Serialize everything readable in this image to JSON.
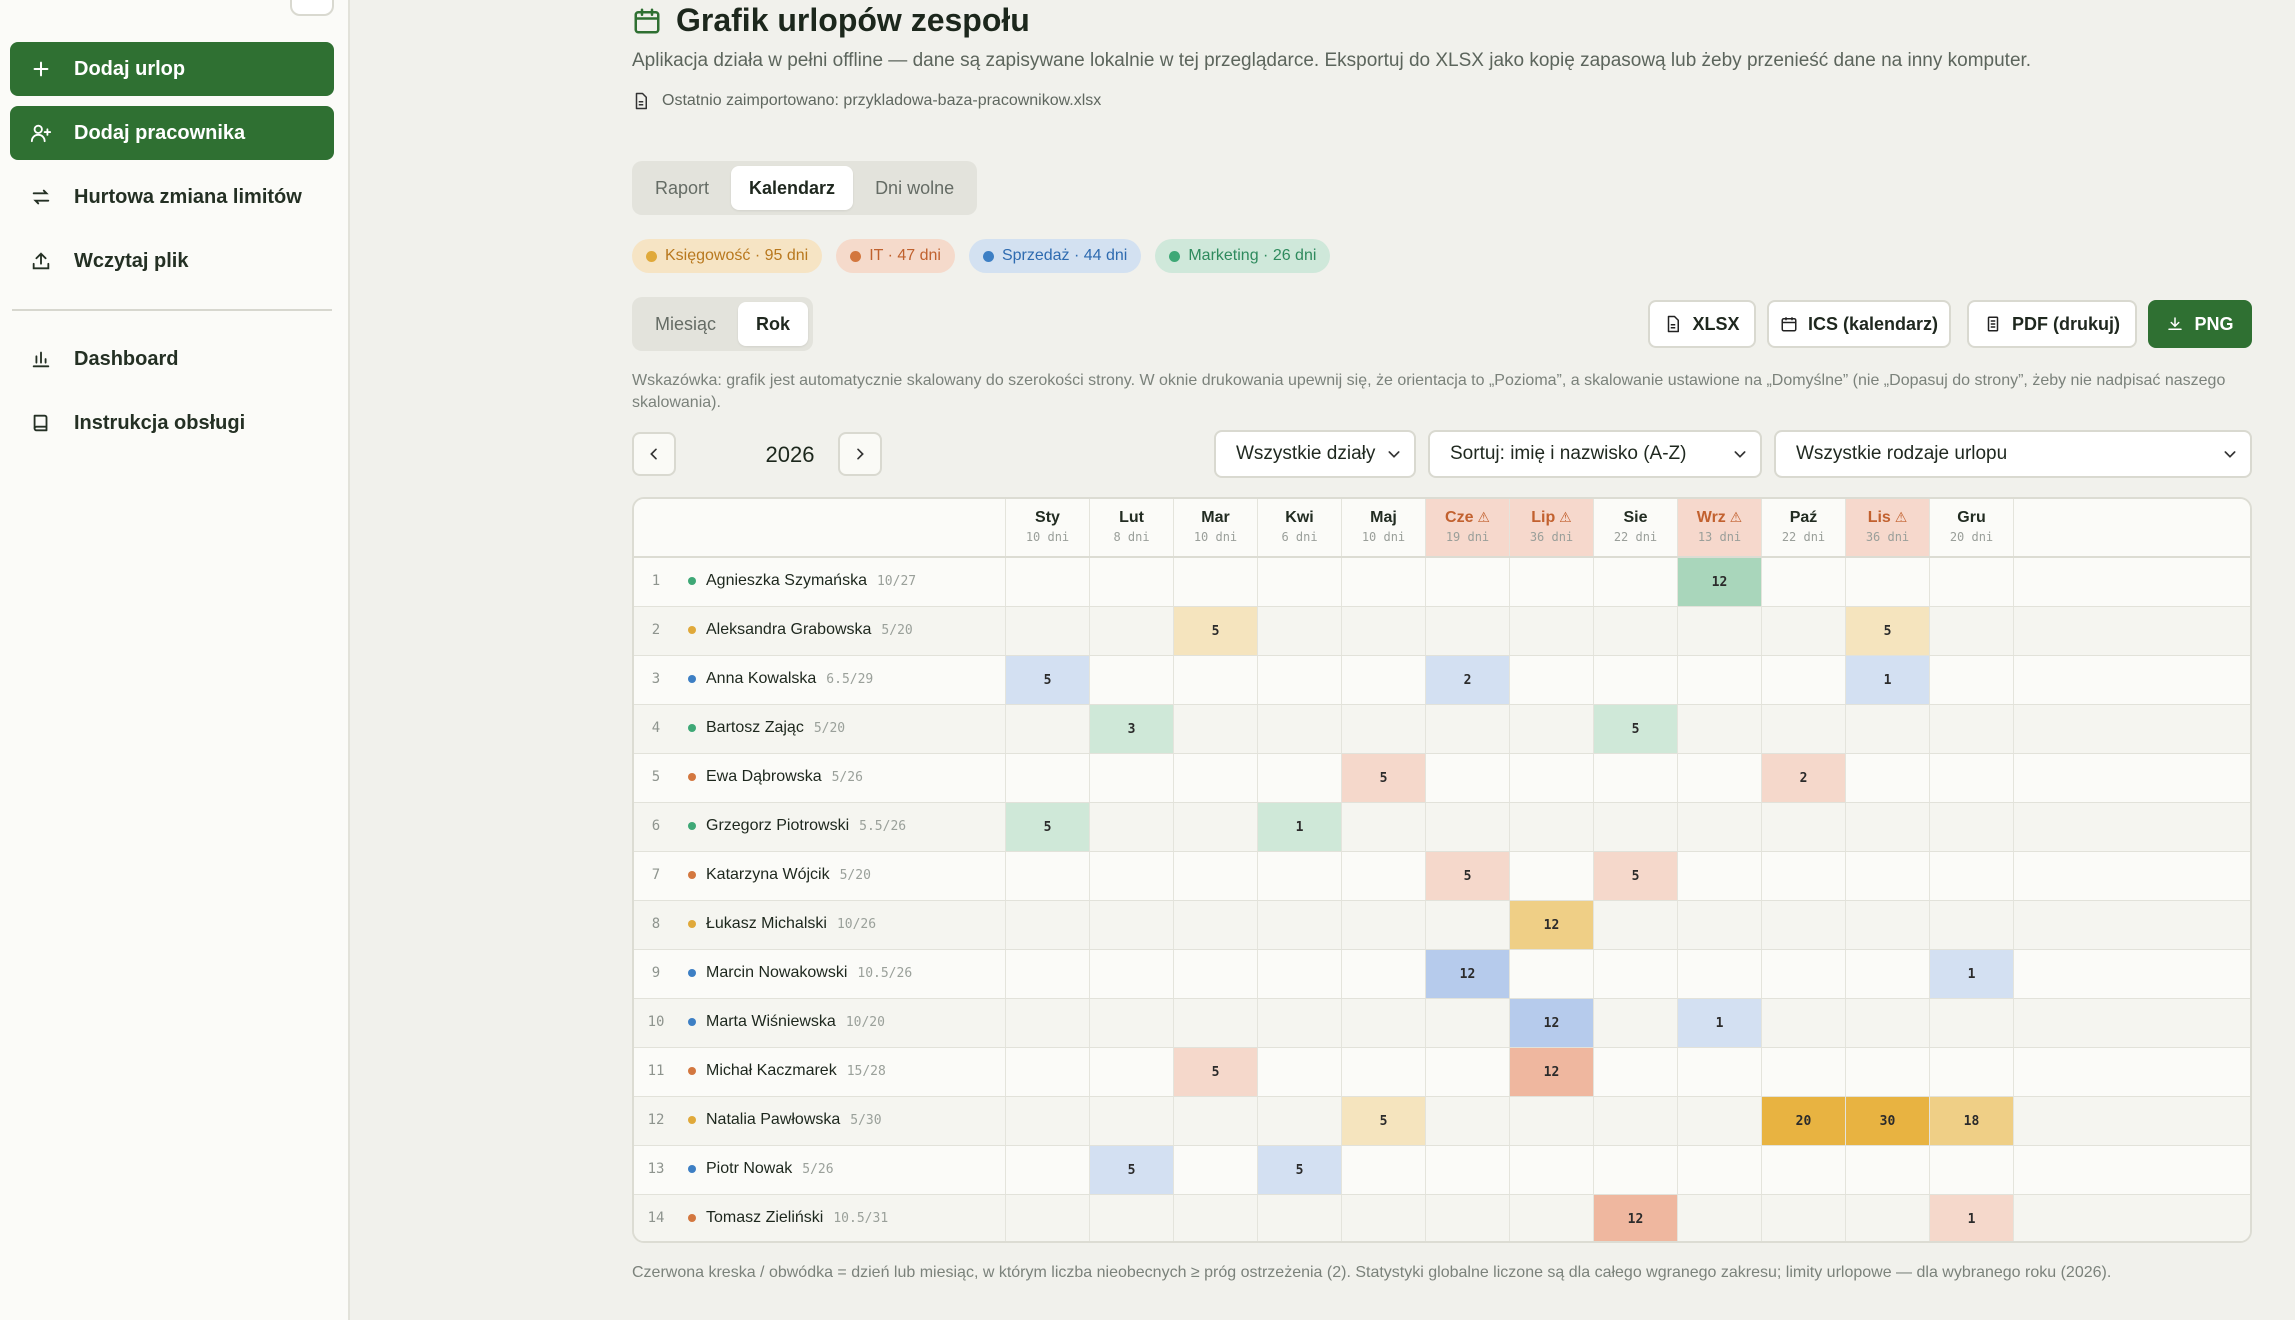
{
  "sidebar": {
    "items": [
      {
        "label": "Dodaj urlop",
        "icon": "plus-icon",
        "primary": true
      },
      {
        "label": "Dodaj pracownika",
        "icon": "add-user-icon",
        "primary": true
      },
      {
        "label": "Hurtowa zmiana limitów",
        "icon": "swap-icon",
        "primary": false
      },
      {
        "label": "Wczytaj plik",
        "icon": "upload-icon",
        "primary": false
      },
      {
        "label": "Dashboard",
        "icon": "bar-chart-icon",
        "primary": false
      },
      {
        "label": "Instrukcja obsługi",
        "icon": "book-icon",
        "primary": false
      }
    ]
  },
  "header": {
    "title": "Grafik urlopów zespołu",
    "subtitle": "Aplikacja działa w pełni offline — dane są zapisywane lokalnie w tej przeglądarce. Eksportuj do XLSX jako kopię zapasową lub żeby przenieść dane na inny komputer.",
    "imported": "Ostatnio zaimportowano: przykladowa-baza-pracownikow.xlsx"
  },
  "tabs": [
    "Raport",
    "Kalendarz",
    "Dni wolne"
  ],
  "active_tab": "Kalendarz",
  "departments": [
    {
      "label": "Księgowość · 95 dni",
      "color": "#e0a93a",
      "bg": "#f6e4c4",
      "text": "#b8781e"
    },
    {
      "label": "IT · 47 dni",
      "color": "#d3773f",
      "bg": "#f5dacb",
      "text": "#c0612e"
    },
    {
      "label": "Sprzedaż · 44 dni",
      "color": "#3d7fc4",
      "bg": "#d3e1f1",
      "text": "#2e6bb0"
    },
    {
      "label": "Marketing · 26 dni",
      "color": "#3ea876",
      "bg": "#cfe8da",
      "text": "#2e8a5d"
    }
  ],
  "view_mode": {
    "options": [
      "Miesiąc",
      "Rok"
    ],
    "active": "Rok"
  },
  "export_buttons": {
    "xlsx": "XLSX",
    "ics": "ICS (kalendarz)",
    "pdf": "PDF (drukuj)",
    "png": "PNG"
  },
  "hint": "Wskazówka: grafik jest automatycznie skalowany do szerokości strony. W oknie drukowania upewnij się, że orientacja to „Pozioma”, a skalowanie ustawione na „Domyślne” (nie „Dopasuj do strony”, żeby nie nadpisać naszego skalowania).",
  "year": "2026",
  "filters": {
    "department": "Wszystkie działy",
    "sort": "Sortuj: imię i nazwisko (A-Z)",
    "leave_type": "Wszystkie rodzaje urlopu"
  },
  "months": [
    {
      "name": "Sty",
      "days": "10 dni",
      "warn": false
    },
    {
      "name": "Lut",
      "days": "8 dni",
      "warn": false
    },
    {
      "name": "Mar",
      "days": "10 dni",
      "warn": false
    },
    {
      "name": "Kwi",
      "days": "6 dni",
      "warn": false
    },
    {
      "name": "Maj",
      "days": "10 dni",
      "warn": false
    },
    {
      "name": "Cze",
      "days": "19 dni",
      "warn": true
    },
    {
      "name": "Lip",
      "days": "36 dni",
      "warn": true
    },
    {
      "name": "Sie",
      "days": "22 dni",
      "warn": false
    },
    {
      "name": "Wrz",
      "days": "13 dni",
      "warn": true
    },
    {
      "name": "Paź",
      "days": "22 dni",
      "warn": false
    },
    {
      "name": "Lis",
      "days": "36 dni",
      "warn": true
    },
    {
      "name": "Gru",
      "days": "20 dni",
      "warn": false
    }
  ],
  "employees": [
    {
      "num": "1",
      "name": "Agnieszka Szymańska",
      "limit": "10/27",
      "dept": "marketing",
      "days": {
        "8": "12"
      }
    },
    {
      "num": "2",
      "name": "Aleksandra Grabowska",
      "limit": "5/20",
      "dept": "ksiegowosc",
      "days": {
        "2": "5",
        "10": "5"
      }
    },
    {
      "num": "3",
      "name": "Anna Kowalska",
      "limit": "6.5/29",
      "dept": "sprzedaz",
      "days": {
        "0": "5",
        "5": "2",
        "10": "1"
      }
    },
    {
      "num": "4",
      "name": "Bartosz Zając",
      "limit": "5/20",
      "dept": "marketing",
      "days": {
        "1": "3",
        "7": "5"
      }
    },
    {
      "num": "5",
      "name": "Ewa Dąbrowska",
      "limit": "5/26",
      "dept": "it",
      "days": {
        "4": "5",
        "9": "2"
      }
    },
    {
      "num": "6",
      "name": "Grzegorz Piotrowski",
      "limit": "5.5/26",
      "dept": "marketing",
      "days": {
        "0": "5",
        "3": "1"
      }
    },
    {
      "num": "7",
      "name": "Katarzyna Wójcik",
      "limit": "5/20",
      "dept": "it",
      "days": {
        "5": "5",
        "7": "5"
      }
    },
    {
      "num": "8",
      "name": "Łukasz Michalski",
      "limit": "10/26",
      "dept": "ksiegowosc",
      "days": {
        "6": "12"
      }
    },
    {
      "num": "9",
      "name": "Marcin Nowakowski",
      "limit": "10.5/26",
      "dept": "sprzedaz",
      "days": {
        "5": "12",
        "11": "1"
      }
    },
    {
      "num": "10",
      "name": "Marta Wiśniewska",
      "limit": "10/20",
      "dept": "sprzedaz",
      "days": {
        "6": "12",
        "8": "1"
      }
    },
    {
      "num": "11",
      "name": "Michał Kaczmarek",
      "limit": "15/28",
      "dept": "it",
      "days": {
        "2": "5",
        "6": "12"
      }
    },
    {
      "num": "12",
      "name": "Natalia Pawłowska",
      "limit": "5/30",
      "dept": "ksiegowosc",
      "days": {
        "4": "5",
        "9": "20",
        "10": "30",
        "11": "18"
      }
    },
    {
      "num": "13",
      "name": "Piotr Nowak",
      "limit": "5/26",
      "dept": "sprzedaz",
      "days": {
        "1": "5",
        "3": "5"
      }
    },
    {
      "num": "14",
      "name": "Tomasz Zieliński",
      "limit": "10.5/31",
      "dept": "it",
      "days": {
        "7": "12",
        "11": "1"
      }
    }
  ],
  "dept_colors": {
    "ksiegowosc": "#e0a93a",
    "it": "#d3773f",
    "sprzedaz": "#3d7fc4",
    "marketing": "#3ea876"
  },
  "footnote": "Czerwona kreska / obwódka = dzień lub miesiąc, w którym liczba nieobecnych ≥ próg ostrzeżenia (2). Statystyki globalne liczone są dla całego wgranego zakresu; limity urlopowe — dla wybranego roku (2026)."
}
